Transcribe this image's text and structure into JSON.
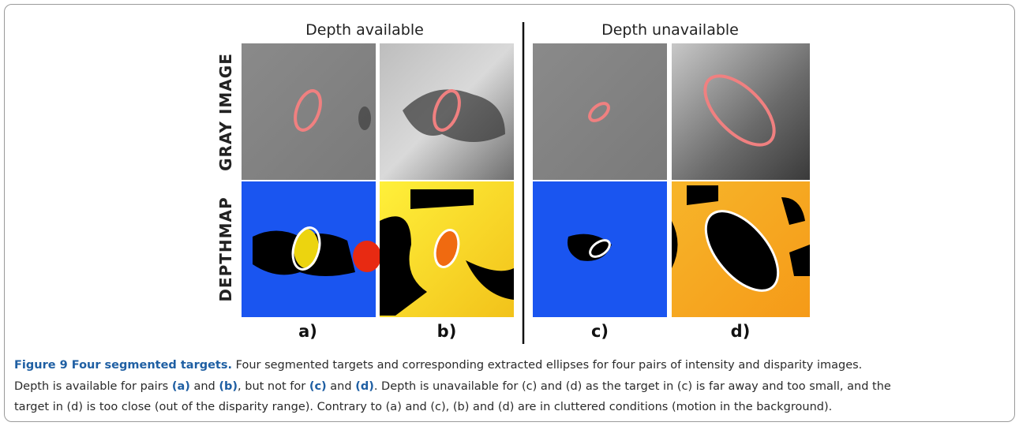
{
  "figure": {
    "column_headings": [
      "Depth available",
      "Depth unavailable"
    ],
    "row_labels": [
      "GRAY IMAGE",
      "DEPTHMAP"
    ],
    "panel_labels": [
      "a)",
      "b)",
      "c)",
      "d)"
    ],
    "caption": {
      "lines": [
        [
          {
            "text": "Figure 9 Four segmented targets.",
            "bold": true
          },
          {
            "text": " Four segmented targets and corresponding extracted ellipses for four pairs of intensity and disparity images.",
            "bold": false
          }
        ],
        [
          {
            "text": "Depth is available for pairs ",
            "bold": false
          },
          {
            "text": "(a)",
            "bold": true
          },
          {
            "text": " and ",
            "bold": false
          },
          {
            "text": "(b)",
            "bold": true
          },
          {
            "text": ", but not for ",
            "bold": false
          },
          {
            "text": "(c)",
            "bold": true
          },
          {
            "text": " and ",
            "bold": false
          },
          {
            "text": "(d)",
            "bold": true
          },
          {
            "text": ". Depth is unavailable for (c) and (d) as the target in (c) is far away and too small, and the",
            "bold": false
          }
        ],
        [
          {
            "text": "target in (d) is too close (out of the disparity range). Contrary to (a) and (c), (b) and (d) are in cluttered conditions (motion in the background).",
            "bold": false
          }
        ]
      ]
    }
  }
}
